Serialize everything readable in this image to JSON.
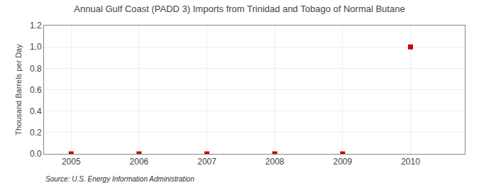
{
  "chart_data": {
    "type": "scatter",
    "title": "Annual Gulf Coast (PADD 3) Imports from Trinidad and Tobago of Normal Butane",
    "y_label": "Thousand Barrels per Day",
    "annotations": [
      "Source: U.S. Energy Information Administration"
    ],
    "x": [
      2005,
      2006,
      2007,
      2008,
      2009,
      2010
    ],
    "values": [
      0.0,
      0.0,
      0.0,
      0.0,
      0.0,
      1.0
    ],
    "color": "#cc0000",
    "marker": "square",
    "xlim": [
      2004.6,
      2010.8
    ],
    "xticks": [
      2005,
      2006,
      2007,
      2008,
      2009,
      2010
    ],
    "ylim": [
      0.0,
      1.2
    ],
    "yticks": [
      {
        "value": 0.0,
        "label": "0.0"
      },
      0.2,
      0.4,
      0.6,
      0.8,
      {
        "value": 1.0,
        "label": "1.0"
      },
      1.2
    ],
    "grid": true
  }
}
